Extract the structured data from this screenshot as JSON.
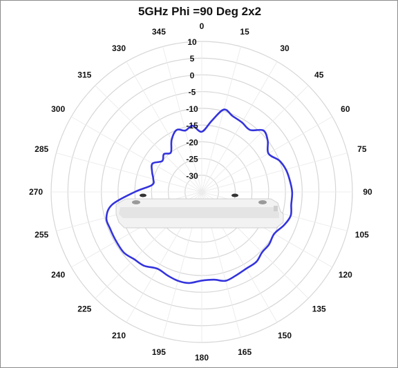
{
  "chart_data": {
    "type": "polar-line",
    "title": "5GHz Phi =90 Deg 2x2",
    "angle_unit": "deg",
    "angle_ticks": [
      0,
      15,
      30,
      45,
      60,
      75,
      90,
      105,
      120,
      135,
      150,
      165,
      180,
      195,
      210,
      225,
      240,
      255,
      270,
      285,
      300,
      315,
      330,
      345
    ],
    "radial_ticks": [
      10,
      5,
      0,
      -5,
      -10,
      -15,
      -20,
      -25,
      -30
    ],
    "radial_range": [
      -35,
      10
    ],
    "grid": true,
    "series": [
      {
        "color": "#3333dd",
        "angles": [
          0,
          8,
          15,
          22,
          30,
          38,
          45,
          52,
          60,
          68,
          75,
          82,
          90,
          98,
          105,
          112,
          120,
          128,
          135,
          142,
          150,
          158,
          165,
          172,
          180,
          188,
          195,
          202,
          210,
          218,
          225,
          232,
          240,
          248,
          255,
          262,
          270,
          278,
          285,
          292,
          300,
          308,
          315,
          322,
          330,
          338,
          345,
          352
        ],
        "values": [
          -17,
          -13.5,
          -9.5,
          -10.5,
          -11,
          -11.5,
          -9,
          -10,
          -12,
          -10,
          -9,
          -8.5,
          -8,
          -8,
          -7.5,
          -8.5,
          -10,
          -9.5,
          -9.5,
          -8.5,
          -8.5,
          -8,
          -7.5,
          -8.5,
          -8.5,
          -7.5,
          -7.5,
          -8,
          -8.5,
          -7,
          -6.5,
          -5.5,
          -5.5,
          -5.5,
          -5.5,
          -8,
          -15,
          -20,
          -20,
          -19,
          -18,
          -20,
          -19,
          -20,
          -17,
          -15,
          -16,
          -15
        ]
      }
    ]
  },
  "colors": {
    "grid": "#d6d6d6",
    "series": "#3333dd",
    "device": "#e6e6e6"
  },
  "device_image": "access-point-device"
}
